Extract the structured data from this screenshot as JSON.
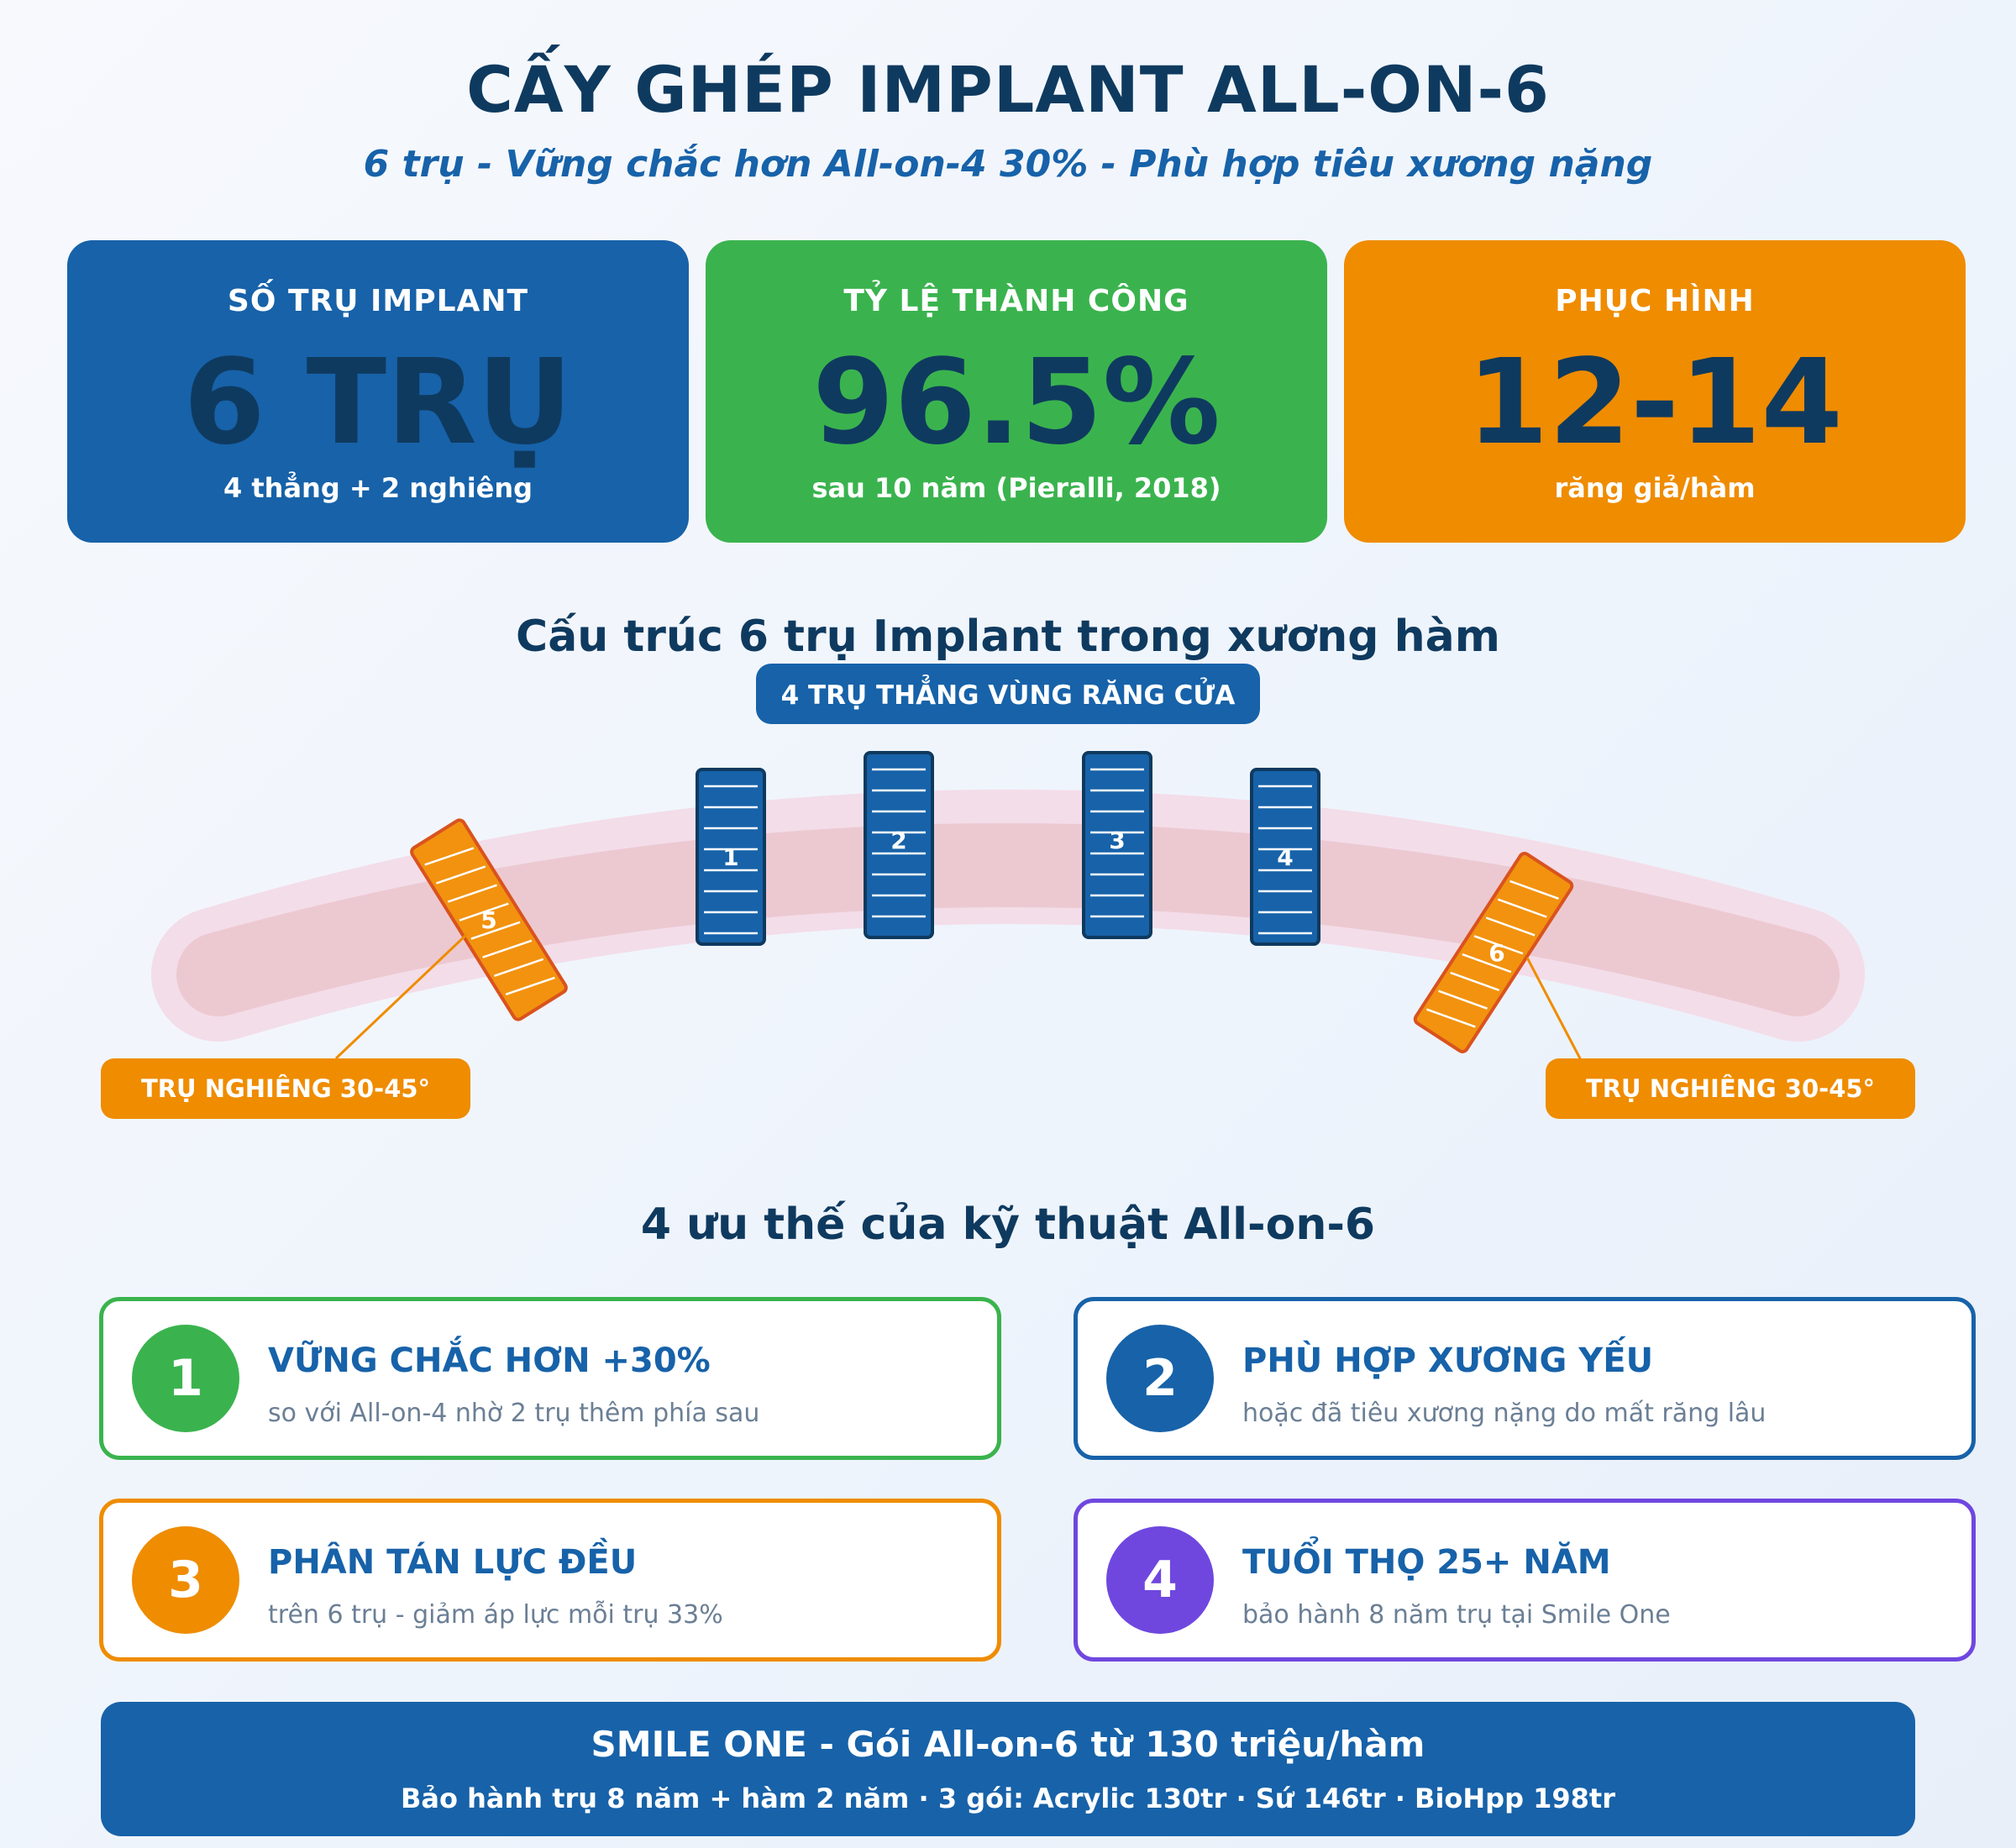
{
  "header": {
    "title": "CẤY GHÉP IMPLANT ALL-ON-6",
    "subtitle": "6 trụ - Vững chắc hơn All-on-4 30% - Phù hợp tiêu xương nặng"
  },
  "stats": [
    {
      "label": "SỐ TRỤ IMPLANT",
      "value": "6 TRỤ",
      "note": "4 thẳng + 2 nghiêng",
      "color": "#1762a9"
    },
    {
      "label": "TỶ LỆ THÀNH CÔNG",
      "value": "96.5%",
      "note": "sau 10 năm (Pieralli, 2018)",
      "color": "#3ab34e"
    },
    {
      "label": "PHỤC HÌNH",
      "value": "12-14",
      "note": "răng giả/hàm",
      "color": "#ef8c00"
    }
  ],
  "diagram": {
    "title": "Cấu trúc 6 trụ Implant trong xương hàm",
    "front_label": "4 TRỤ THẲNG VÙNG RĂNG CỬA",
    "tilted_label_left": "TRỤ NGHIÊNG 30-45°",
    "tilted_label_right": "TRỤ NGHIÊNG 30-45°",
    "implant_numbers": [
      "1",
      "2",
      "3",
      "4",
      "5",
      "6"
    ],
    "colors": {
      "straight_implant": "#1762a9",
      "tilted_implant": "#f2920f",
      "tilted_outline": "#d9531e",
      "jaw": "#e8c4cd",
      "jaw_outer": "#f3dde9"
    }
  },
  "advantages": {
    "title": "4 ưu thế của kỹ thuật All-on-6",
    "items": [
      {
        "number": "1",
        "title": "VỮNG CHẮC HƠN +30%",
        "description": "so với All-on-4 nhờ 2 trụ thêm phía sau",
        "color": "#3ab34e"
      },
      {
        "number": "2",
        "title": "PHÙ HỢP XƯƠNG YẾU",
        "description": "hoặc đã tiêu xương nặng do mất răng lâu",
        "color": "#1762a9"
      },
      {
        "number": "3",
        "title": "PHÂN TÁN LỰC ĐỀU",
        "description": "trên 6 trụ - giảm áp lực mỗi trụ 33%",
        "color": "#ef8c00"
      },
      {
        "number": "4",
        "title": "TUỔI THỌ 25+ NĂM",
        "description": "bảo hành 8 năm trụ tại Smile One",
        "color": "#6f47df"
      }
    ]
  },
  "footer": {
    "title": "SMILE ONE - Gói All-on-6 từ 130 triệu/hàm",
    "details": "Bảo hành trụ 8 năm + hàm 2 năm · 3 gói: Acrylic 130tr · Sứ 146tr · BioHpp 198tr"
  }
}
